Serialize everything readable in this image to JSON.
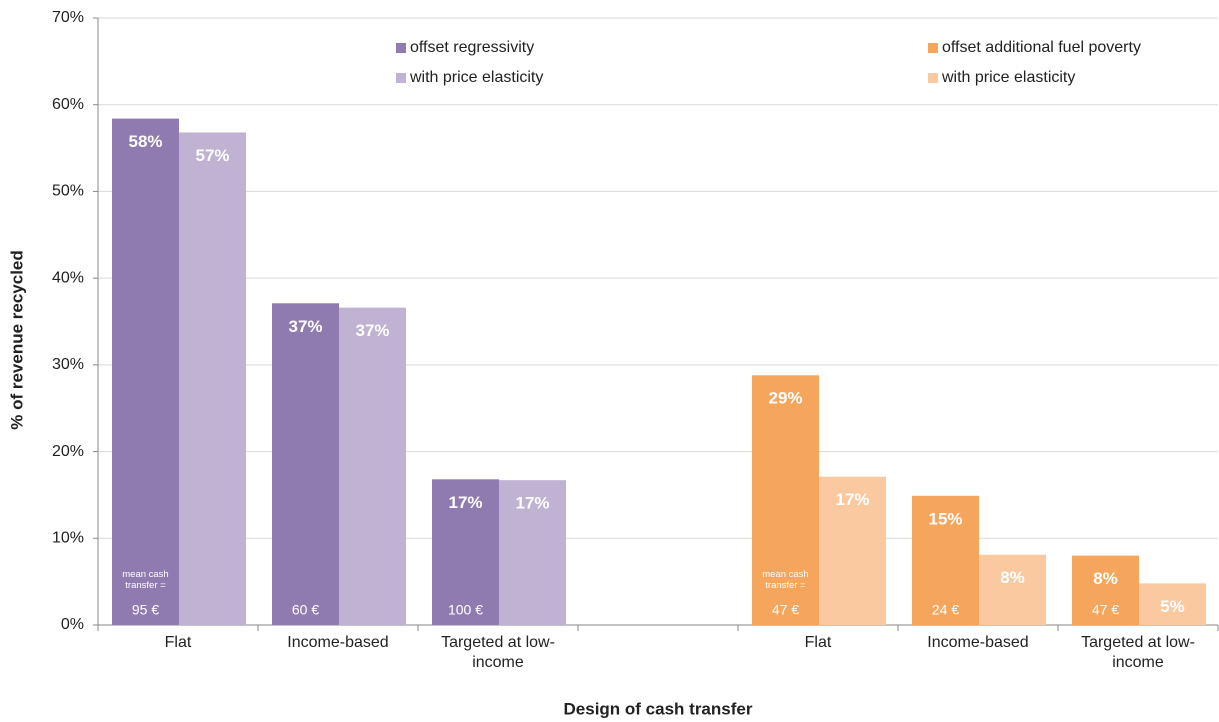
{
  "chart_data": {
    "type": "bar",
    "x_label": "Design of cash transfer",
    "y_label": "% of revenue recycled",
    "categories": [
      "Flat",
      "Income-based",
      "Targeted at low-income",
      null,
      "Flat",
      "Income-based",
      "Targeted at low-income"
    ],
    "ylim": [
      0,
      70
    ],
    "yticks": [
      {
        "value": 0,
        "label": "0%"
      },
      {
        "value": 10,
        "label": "10%"
      },
      {
        "value": 20,
        "label": "20%"
      },
      {
        "value": 30,
        "label": "30%"
      },
      {
        "value": 40,
        "label": "40%"
      },
      {
        "value": 50,
        "label": "50%"
      },
      {
        "value": 60,
        "label": "60%"
      },
      {
        "value": 70,
        "label": "70%"
      }
    ],
    "grid": true,
    "cash_transfer_note": "mean cash transfer =",
    "series": [
      {
        "name": "offset regressivity",
        "color": "#907bb1",
        "values": [
          58.4,
          37.1,
          16.8,
          null,
          null,
          null,
          null
        ],
        "value_labels": [
          "58%",
          "37%",
          "17%",
          null,
          null,
          null,
          null
        ],
        "cash_transfer_labels": [
          "95 €",
          "60 €",
          "100 €",
          null,
          null,
          null,
          null
        ]
      },
      {
        "name": "with price elasticity",
        "color": "#bfb2d2",
        "values": [
          56.8,
          36.6,
          16.7,
          null,
          null,
          null,
          null
        ],
        "value_labels": [
          "57%",
          "37%",
          "17%",
          null,
          null,
          null,
          null
        ]
      },
      {
        "name": "offset additional fuel poverty",
        "color": "#f6a65c",
        "values": [
          null,
          null,
          null,
          null,
          28.8,
          14.9,
          8.0
        ],
        "value_labels": [
          null,
          null,
          null,
          null,
          "29%",
          "15%",
          "8%"
        ],
        "cash_transfer_labels": [
          null,
          null,
          null,
          null,
          "47 €",
          "24 €",
          "47 €"
        ]
      },
      {
        "name": "with price elasticity",
        "color": "#fac9a0",
        "values": [
          null,
          null,
          null,
          null,
          17.1,
          8.1,
          4.8
        ],
        "value_labels": [
          null,
          null,
          null,
          null,
          "17%",
          "8%",
          "5%"
        ]
      }
    ]
  }
}
